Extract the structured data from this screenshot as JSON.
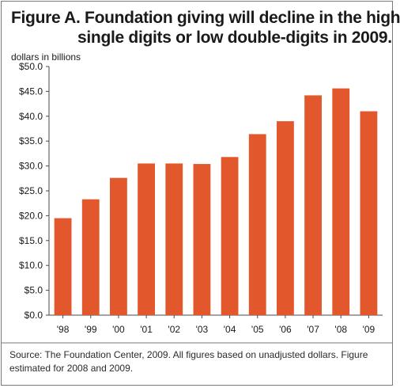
{
  "figure": {
    "title_line1": "Figure A. Foundation giving will decline in the high",
    "title_line2": "single digits or low double-digits in 2009.",
    "source": "Source: The Foundation Center, 2009. All figures based on unadjusted dollars. Figure estimated for 2008 and 2009."
  },
  "colors": {
    "bar": "#e2572b",
    "axis": "#4a4a4a",
    "text": "#1a1a1a",
    "border": "#7a7a7a"
  },
  "chart_data": {
    "type": "bar",
    "title": "Figure A. Foundation giving will decline in the high single digits or low double-digits in 2009.",
    "xlabel": "",
    "ylabel": "dollars in billions",
    "categories": [
      "'98",
      "'99",
      "'00",
      "'01",
      "'02",
      "'03",
      "'04",
      "'05",
      "'06",
      "'07",
      "'08",
      "'09"
    ],
    "values": [
      19.5,
      23.3,
      27.6,
      30.5,
      30.5,
      30.4,
      31.8,
      36.4,
      39.0,
      44.2,
      45.6,
      41.0
    ],
    "ylim": [
      0,
      50
    ],
    "yticks": [
      0,
      5,
      10,
      15,
      20,
      25,
      30,
      35,
      40,
      45,
      50
    ],
    "ytick_labels": [
      "$0.0",
      "$5.0",
      "$10.0",
      "$15.0",
      "$20.0",
      "$25.0",
      "$30.0",
      "$35.0",
      "$40.0",
      "$45.0",
      "$50.0"
    ],
    "grid": false,
    "legend": "none"
  }
}
